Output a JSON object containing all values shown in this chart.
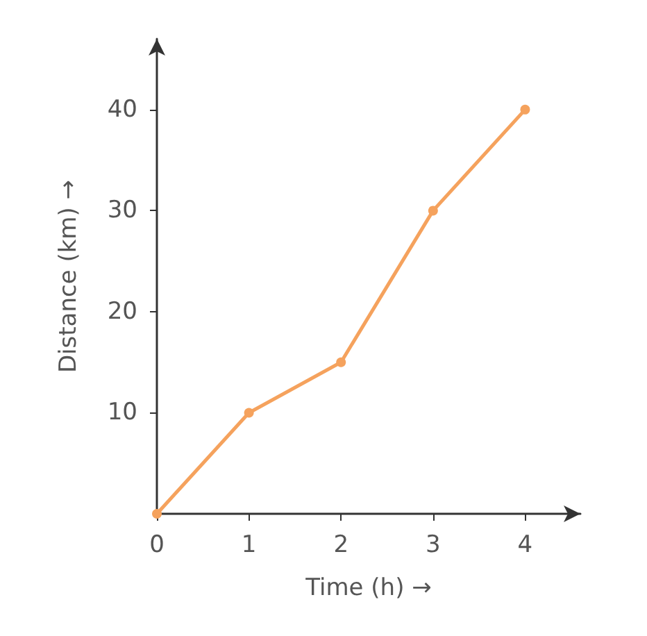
{
  "chart_data": {
    "type": "line",
    "xlabel": "Time (h) →",
    "ylabel": "Distance (km) →",
    "x": [
      0,
      1,
      2,
      3,
      4
    ],
    "series": [
      {
        "color": "#f5a25d",
        "values": [
          0,
          10,
          15,
          30,
          40
        ]
      }
    ],
    "xlim": [
      0,
      4.6
    ],
    "xticks": [
      0,
      1,
      2,
      3,
      4
    ],
    "ylim": [
      0,
      47
    ],
    "yticks": [
      10,
      20,
      30,
      40
    ],
    "marker": "circle",
    "line_style": "solid",
    "grid": false
  }
}
